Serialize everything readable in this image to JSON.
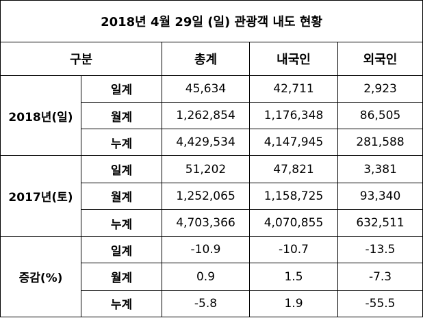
{
  "title": "2018년 4월 29일 (일) 관광객 내도 현황",
  "header": [
    "구분",
    "총계",
    "내국인",
    "외국인"
  ],
  "groups": [
    {
      "label": "2018년(일)",
      "rows": [
        {
          "label": "일계",
          "values": [
            "45,634",
            "42,711",
            "2,923"
          ]
        },
        {
          "label": "월계",
          "values": [
            "1,262,854",
            "1,176,348",
            "86,505"
          ]
        },
        {
          "label": "누계",
          "values": [
            "4,429,534",
            "4,147,945",
            "281,588"
          ]
        }
      ]
    },
    {
      "label": "2017년(토)",
      "rows": [
        {
          "label": "일계",
          "values": [
            "51,202",
            "47,821",
            "3,381"
          ]
        },
        {
          "label": "월계",
          "values": [
            "1,252,065",
            "1,158,725",
            "93,340"
          ]
        },
        {
          "label": "누계",
          "values": [
            "4,703,366",
            "4,070,855",
            "632,511"
          ]
        }
      ]
    },
    {
      "label": "증감(%)",
      "rows": [
        {
          "label": "일계",
          "values": [
            "-10.9",
            "-10.7",
            "-13.5"
          ]
        },
        {
          "label": "월계",
          "values": [
            "0.9",
            "1.5",
            "-7.3"
          ]
        },
        {
          "label": "누계",
          "values": [
            "-5.8",
            "1.9",
            "-55.5"
          ]
        }
      ]
    }
  ]
}
